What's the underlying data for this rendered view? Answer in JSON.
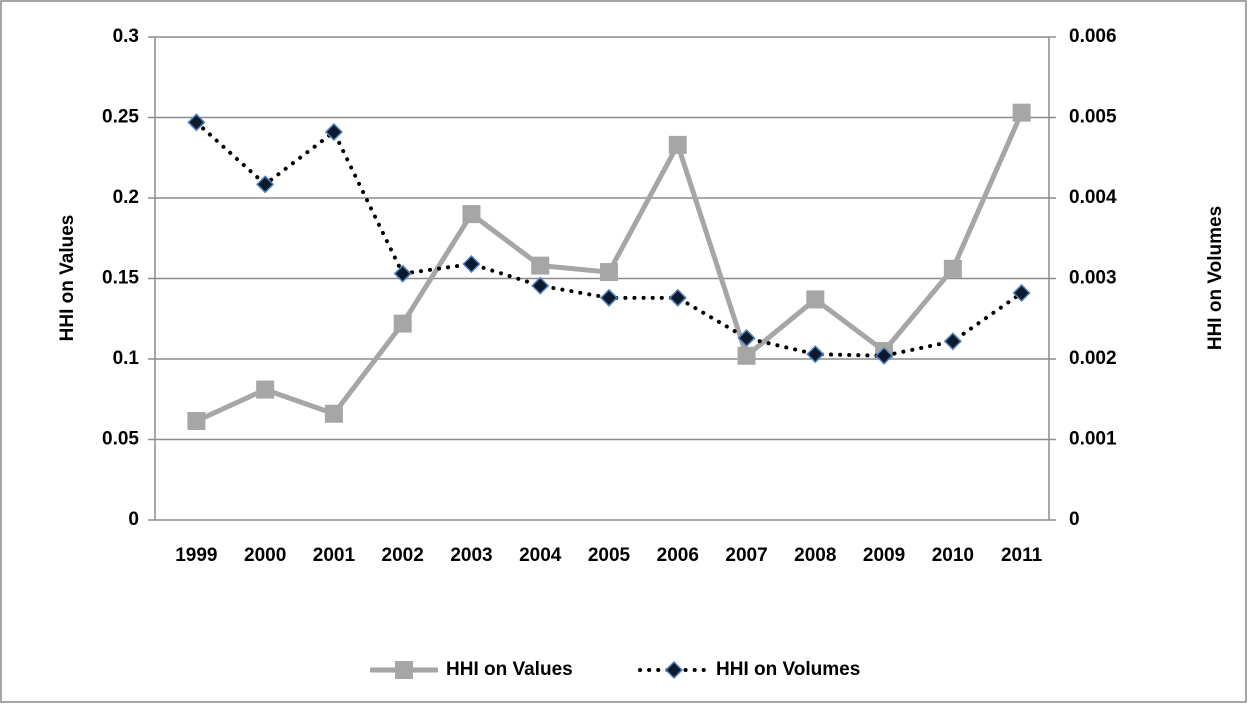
{
  "chart_data": {
    "type": "line",
    "categories": [
      "1999",
      "2000",
      "2001",
      "2002",
      "2003",
      "2004",
      "2005",
      "2006",
      "2007",
      "2008",
      "2009",
      "2010",
      "2011"
    ],
    "series": [
      {
        "name": "HHI on Values",
        "color": "#a6a6a6",
        "line_style": "solid",
        "marker": "square",
        "values": [
          0.0615,
          0.081,
          0.066,
          0.122,
          0.19,
          0.158,
          0.154,
          0.233,
          0.102,
          0.137,
          0.105,
          0.156,
          0.253
        ]
      },
      {
        "name": "HHI on Volumes",
        "color": "#000000",
        "line_style": "dotted",
        "marker": "diamond",
        "axis": "y2",
        "values": [
          0.00494,
          0.00417,
          0.00482,
          0.00306,
          0.00318,
          0.00291,
          0.00276,
          0.00276,
          0.00226,
          0.00206,
          0.00204,
          0.00222,
          0.00282
        ]
      }
    ],
    "ylabel": "HHI on Values",
    "y2label": "HHI on Volumes",
    "ylim": [
      0,
      0.3
    ],
    "yticks": [
      0,
      0.05,
      0.1,
      0.15,
      0.2,
      0.25,
      0.3
    ],
    "y2lim": [
      0,
      0.006
    ],
    "y2ticks": [
      0,
      0.001,
      0.002,
      0.003,
      0.004,
      0.005,
      0.006
    ],
    "grid": true,
    "legend": "bottom"
  }
}
